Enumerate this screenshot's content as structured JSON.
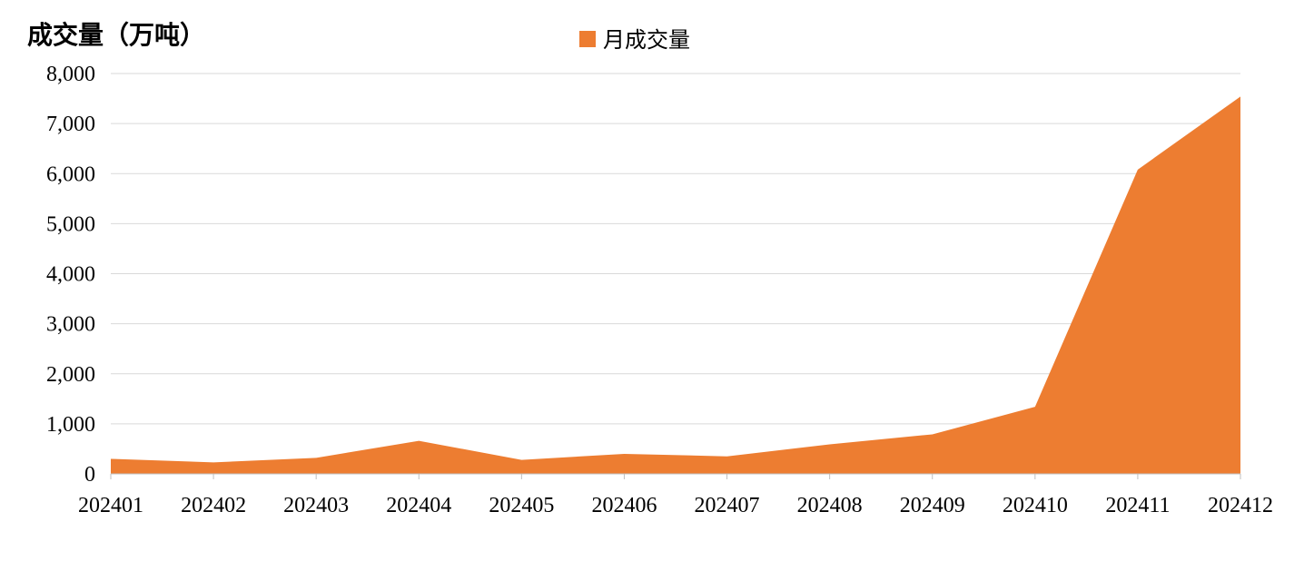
{
  "chart_data": {
    "type": "area",
    "unit_label": "成交量（万吨）",
    "legend": {
      "label": "月成交量",
      "position": "top"
    },
    "categories": [
      "202401",
      "202402",
      "202403",
      "202404",
      "202405",
      "202406",
      "202407",
      "202408",
      "202409",
      "202410",
      "202411",
      "202412"
    ],
    "series": [
      {
        "name": "月成交量",
        "color": "#ED7D31",
        "values": [
          300,
          230,
          320,
          660,
          280,
          400,
          350,
          590,
          790,
          1340,
          6080,
          7540
        ]
      }
    ],
    "ylim": [
      0,
      8000
    ],
    "yticks": [
      0,
      1000,
      2000,
      3000,
      4000,
      5000,
      6000,
      7000,
      8000
    ],
    "ytick_labels": [
      "0",
      "1,000",
      "2,000",
      "3,000",
      "4,000",
      "5,000",
      "6,000",
      "7,000",
      "8,000"
    ],
    "grid": true
  }
}
